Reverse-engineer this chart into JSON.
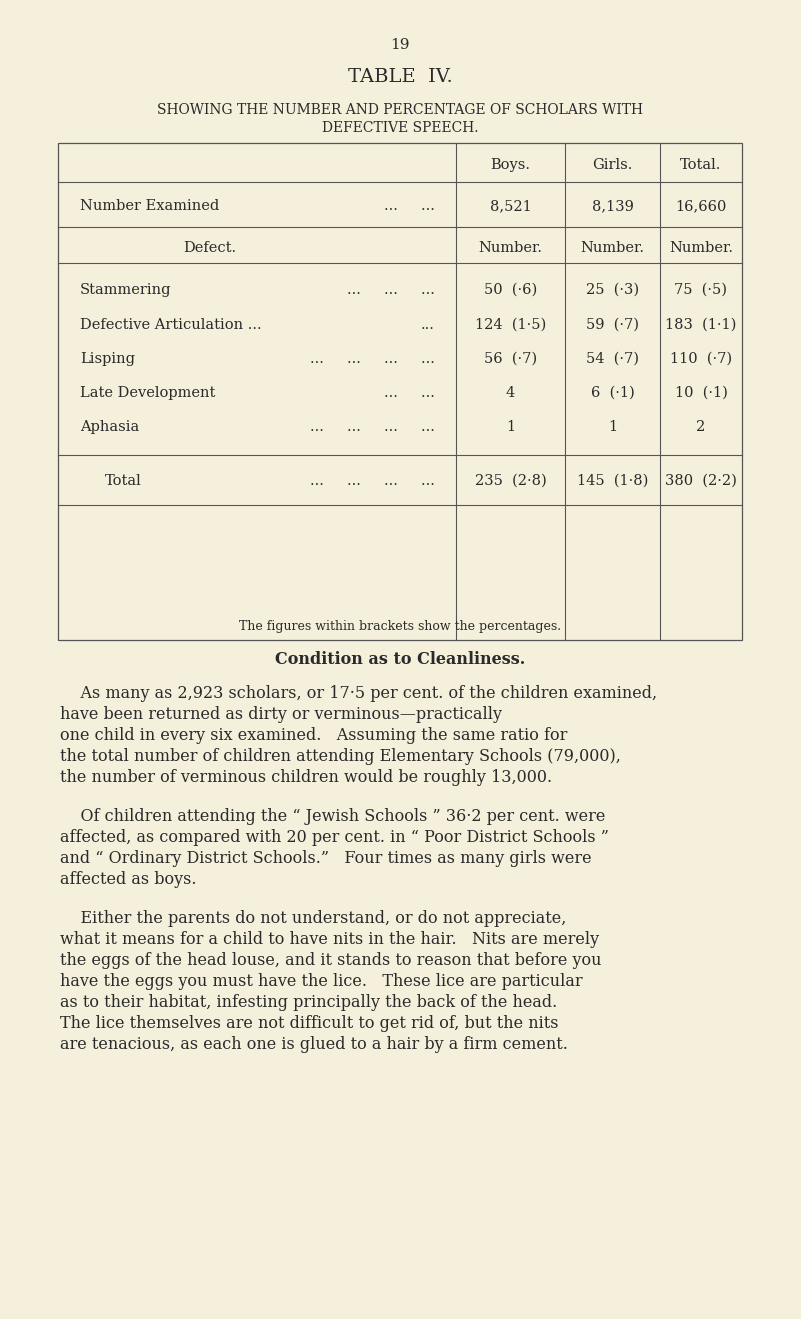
{
  "page_number": "19",
  "table_title": "TABLE  IV.",
  "subtitle_line1": "Showing the Number and Percentage of Scholars with",
  "subtitle_line2": "Defective Speech.",
  "bg_color": "#F5F0DC",
  "text_color": "#2a2a2a",
  "rows": [
    {
      "label": "Stammering",
      "dots": "...     ...     ...",
      "boys": "50",
      "boys_pct": "(·6)",
      "girls": "25",
      "girls_pct": "(·3)",
      "total": "75",
      "total_pct": "(·5)"
    },
    {
      "label": "Defective Articulation ...",
      "dots": "   ...",
      "boys": "124",
      "boys_pct": "(1·5)",
      "girls": "59",
      "girls_pct": "(·7)",
      "total": "183",
      "total_pct": "(1·1)"
    },
    {
      "label": "Lisping",
      "dots": "...     ...     ...     ...",
      "boys": "56",
      "boys_pct": "(·7)",
      "girls": "54",
      "girls_pct": "(·7)",
      "total": "110",
      "total_pct": "(·7)"
    },
    {
      "label": "Late Development",
      "dots": "   ...     ...",
      "boys": "4",
      "boys_pct": "",
      "girls": "6",
      "girls_pct": "(·1)",
      "total": "10",
      "total_pct": "(·1)"
    },
    {
      "label": "Aphasia",
      "dots": "...     ...     ...     ...",
      "boys": "1",
      "boys_pct": "",
      "girls": "1",
      "girls_pct": "",
      "total": "2",
      "total_pct": ""
    }
  ],
  "total_row": {
    "label": "Total",
    "dots": "...     ...     ...     ...",
    "boys": "235",
    "boys_pct": "(2·8)",
    "girls": "145",
    "girls_pct": "(1·8)",
    "total": "380",
    "total_pct": "(2·2)"
  },
  "footnote": "The figures within brackets show the percentages.",
  "section_title": "Condition as to Cleanliness.",
  "para1_lines": [
    "    As many as 2,923 scholars, or 17·5 per cent. of the children examined,",
    "have been returned as dirty or verminous—practically",
    "one child in every six examined.   Assuming the same ratio for",
    "the total number of children attending Elementary Schools (79,000),",
    "the number of verminous children would be roughly 13,000."
  ],
  "para2_lines": [
    "    Of children attending the “ Jewish Schools ” 36·2 per cent. were",
    "affected, as compared with 20 per cent. in “ Poor District Schools ”",
    "and “ Ordinary District Schools.”   Four times as many girls were",
    "affected as boys."
  ],
  "para3_lines": [
    "    Either the parents do not understand, or do not appreciate,",
    "what it means for a child to have nits in the hair.   Nits are merely",
    "the eggs of the head louse, and it stands to reason that before you",
    "have the eggs you must have the lice.   These lice are particular",
    "as to their habitat, infesting principally the back of the head.",
    "The lice themselves are not difficult to get rid of, but the nits",
    "are tenacious, as each one is glued to a hair by a firm cement."
  ]
}
